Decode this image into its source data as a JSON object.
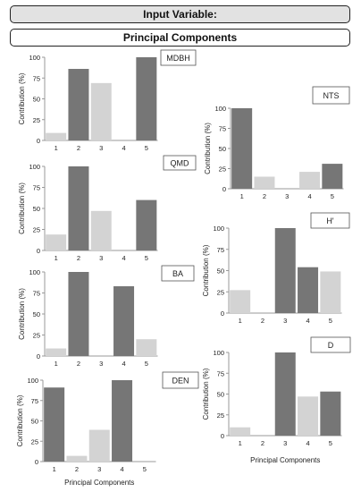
{
  "header": {
    "input_variable": "Input Variable:",
    "principal_components": "Principal Components"
  },
  "axis_text": {
    "ylabel": "Contribution (%)",
    "xlabel": "Principal Components"
  },
  "colors": {
    "dark_bar": "#767676",
    "light_bar": "#d3d3d3",
    "axis": "#999999"
  },
  "chart_data": [
    {
      "type": "bar",
      "title": "MDBH",
      "categories": [
        "1",
        "2",
        "3",
        "4",
        "5"
      ],
      "values": [
        9,
        86,
        69,
        0,
        100
      ],
      "shade": [
        "light",
        "dark",
        "light",
        "dark",
        "dark"
      ],
      "yticks": [
        0,
        25,
        50,
        75,
        100
      ],
      "ylim": [
        0,
        100
      ],
      "ylabel": "Contribution (%)",
      "xlabel": ""
    },
    {
      "type": "bar",
      "title": "QMD",
      "categories": [
        "1",
        "2",
        "3",
        "4",
        "5"
      ],
      "values": [
        19,
        100,
        47,
        0,
        60
      ],
      "shade": [
        "light",
        "dark",
        "light",
        "dark",
        "dark"
      ],
      "yticks": [
        0,
        25,
        50,
        75,
        100
      ],
      "ylim": [
        0,
        100
      ],
      "ylabel": "Contribution (%)",
      "xlabel": ""
    },
    {
      "type": "bar",
      "title": "BA",
      "categories": [
        "1",
        "2",
        "3",
        "4",
        "5"
      ],
      "values": [
        9,
        100,
        0,
        83,
        20
      ],
      "shade": [
        "light",
        "dark",
        "light",
        "dark",
        "light"
      ],
      "yticks": [
        0,
        25,
        50,
        75,
        100
      ],
      "ylim": [
        0,
        100
      ],
      "ylabel": "Contribution (%)",
      "xlabel": ""
    },
    {
      "type": "bar",
      "title": "DEN",
      "categories": [
        "1",
        "2",
        "3",
        "4",
        "5"
      ],
      "values": [
        91,
        7,
        39,
        100,
        0
      ],
      "shade": [
        "dark",
        "light",
        "light",
        "dark",
        "dark"
      ],
      "yticks": [
        0,
        25,
        50,
        75,
        100
      ],
      "ylim": [
        0,
        100
      ],
      "ylabel": "Contribution (%)",
      "xlabel": "Principal Components"
    },
    {
      "type": "bar",
      "title": "NTS",
      "categories": [
        "1",
        "2",
        "3",
        "4",
        "5"
      ],
      "values": [
        100,
        15,
        0,
        21,
        31
      ],
      "shade": [
        "dark",
        "light",
        "light",
        "light",
        "dark"
      ],
      "yticks": [
        0,
        25,
        50,
        75,
        100
      ],
      "ylim": [
        0,
        100
      ],
      "ylabel": "Contribution (%)",
      "xlabel": ""
    },
    {
      "type": "bar",
      "title": "H'",
      "categories": [
        "1",
        "2",
        "3",
        "4",
        "5"
      ],
      "values": [
        27,
        0,
        100,
        54,
        49
      ],
      "shade": [
        "light",
        "light",
        "dark",
        "dark",
        "light"
      ],
      "yticks": [
        0,
        25,
        50,
        75,
        100
      ],
      "ylim": [
        0,
        100
      ],
      "ylabel": "Contribution (%)",
      "xlabel": ""
    },
    {
      "type": "bar",
      "title": "D",
      "categories": [
        "1",
        "2",
        "3",
        "4",
        "5"
      ],
      "values": [
        10,
        0,
        100,
        47,
        53
      ],
      "shade": [
        "light",
        "light",
        "dark",
        "light",
        "dark"
      ],
      "yticks": [
        0,
        25,
        50,
        75,
        100
      ],
      "ylim": [
        0,
        100
      ],
      "ylabel": "Contribution (%)",
      "xlabel": "Principal Components"
    }
  ]
}
